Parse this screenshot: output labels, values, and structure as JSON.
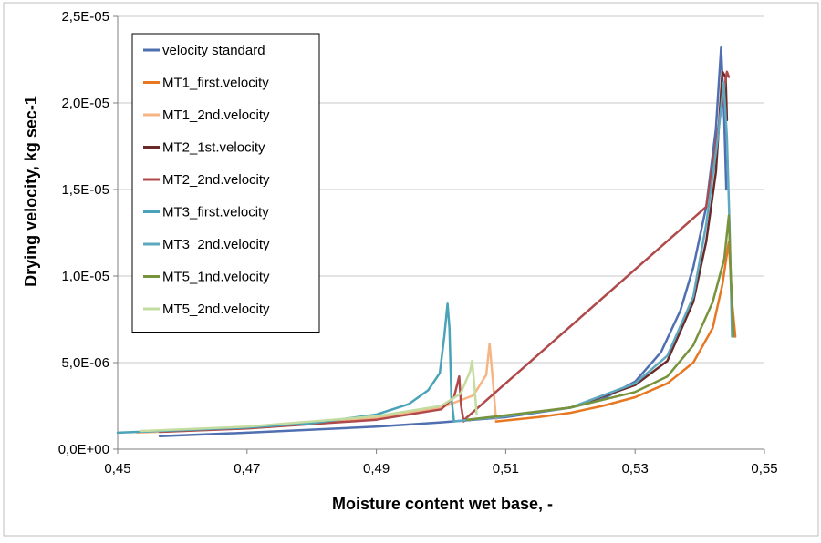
{
  "chart_data": {
    "type": "line",
    "title": "",
    "xlabel": "Moisture content wet base, -",
    "ylabel": "Drying velocity, kg sec-1",
    "xlim": [
      0.45,
      0.55
    ],
    "ylim": [
      0,
      2.5e-05
    ],
    "x_ticks": [
      0.45,
      0.47,
      0.49,
      0.51,
      0.53,
      0.55
    ],
    "x_tick_labels": [
      "0,45",
      "0,47",
      "0,49",
      "0,51",
      "0,53",
      "0,55"
    ],
    "y_ticks": [
      0,
      5e-06,
      1e-05,
      1.5e-05,
      2e-05,
      2.5e-05
    ],
    "y_tick_labels": [
      "0,0E+00",
      "5,0E-06",
      "1,0E-05",
      "1,5E-05",
      "2,0E-05",
      "2,5E-05"
    ],
    "grid": "horizontal",
    "legend_position": "top-left",
    "series": [
      {
        "name": "velocity standard",
        "color": "#4F6FB0",
        "points": [
          [
            0.4565,
            7.5e-07
          ],
          [
            0.47,
            9.5e-07
          ],
          [
            0.49,
            1.3e-06
          ],
          [
            0.5,
            1.55e-06
          ],
          [
            0.51,
            1.85e-06
          ],
          [
            0.52,
            2.4e-06
          ],
          [
            0.525,
            2.9e-06
          ],
          [
            0.53,
            3.9e-06
          ],
          [
            0.534,
            5.6e-06
          ],
          [
            0.537,
            8e-06
          ],
          [
            0.539,
            1.05e-05
          ],
          [
            0.541,
            1.4e-05
          ],
          [
            0.5425,
            1.85e-05
          ],
          [
            0.5433,
            2.32e-05
          ],
          [
            0.5438,
            1.9e-05
          ],
          [
            0.5441,
            1.5e-05
          ]
        ]
      },
      {
        "name": "MT1_first.velocity",
        "color": "#E87722",
        "points": [
          [
            0.5085,
            1.6e-06
          ],
          [
            0.515,
            1.85e-06
          ],
          [
            0.52,
            2.1e-06
          ],
          [
            0.525,
            2.5e-06
          ],
          [
            0.53,
            3e-06
          ],
          [
            0.535,
            3.8e-06
          ],
          [
            0.539,
            5e-06
          ],
          [
            0.542,
            7e-06
          ],
          [
            0.5435,
            9.5e-06
          ],
          [
            0.5445,
            1.2e-05
          ],
          [
            0.545,
            8.5e-06
          ],
          [
            0.5455,
            6.5e-06
          ]
        ]
      },
      {
        "name": "MT1_2nd.velocity",
        "color": "#F5B584",
        "points": [
          [
            0.453,
            9.5e-07
          ],
          [
            0.47,
            1.2e-06
          ],
          [
            0.49,
            1.8e-06
          ],
          [
            0.5,
            2.4e-06
          ],
          [
            0.505,
            3.1e-06
          ],
          [
            0.507,
            4.3e-06
          ],
          [
            0.5075,
            6.1e-06
          ],
          [
            0.508,
            4e-06
          ],
          [
            0.5085,
            1.7e-06
          ]
        ]
      },
      {
        "name": "MT2_1st.velocity",
        "color": "#6B2A2A",
        "points": [
          [
            0.5035,
            1.65e-06
          ],
          [
            0.51,
            1.9e-06
          ],
          [
            0.52,
            2.4e-06
          ],
          [
            0.53,
            3.7e-06
          ],
          [
            0.535,
            5.1e-06
          ],
          [
            0.539,
            8.5e-06
          ],
          [
            0.541,
            1.2e-05
          ],
          [
            0.5425,
            1.6e-05
          ],
          [
            0.5435,
            2.18e-05
          ],
          [
            0.544,
            2.15e-05
          ],
          [
            0.5442,
            1.9e-05
          ]
        ]
      },
      {
        "name": "MT2_2nd.velocity",
        "color": "#B04A4A",
        "points": [
          [
            0.4565,
            1e-06
          ],
          [
            0.47,
            1.2e-06
          ],
          [
            0.49,
            1.7e-06
          ],
          [
            0.5,
            2.3e-06
          ],
          [
            0.502,
            3e-06
          ],
          [
            0.5028,
            4.2e-06
          ],
          [
            0.5031,
            2.5e-06
          ],
          [
            0.5035,
            1.6e-06
          ],
          [
            0.5036,
            1.7e-06
          ],
          [
            0.541,
            1.4e-05
          ],
          [
            0.5442,
            2.18e-05
          ],
          [
            0.5445,
            2.15e-05
          ]
        ]
      },
      {
        "name": "MT3_first.velocity",
        "color": "#4BA3B8",
        "points": [
          [
            0.45,
            9.5e-07
          ],
          [
            0.47,
            1.25e-06
          ],
          [
            0.48,
            1.5e-06
          ],
          [
            0.49,
            2e-06
          ],
          [
            0.495,
            2.6e-06
          ],
          [
            0.498,
            3.4e-06
          ],
          [
            0.4998,
            4.4e-06
          ],
          [
            0.5005,
            6.5e-06
          ],
          [
            0.501,
            8.4e-06
          ],
          [
            0.5013,
            7e-06
          ],
          [
            0.5016,
            3e-06
          ],
          [
            0.502,
            1.6e-06
          ]
        ]
      },
      {
        "name": "MT3_2nd.velocity",
        "color": "#5EA9C0",
        "points": [
          [
            0.502,
            1.6e-06
          ],
          [
            0.51,
            1.9e-06
          ],
          [
            0.52,
            2.4e-06
          ],
          [
            0.53,
            3.8e-06
          ],
          [
            0.535,
            5.4e-06
          ],
          [
            0.539,
            8.8e-06
          ],
          [
            0.541,
            1.3e-05
          ],
          [
            0.5428,
            1.8e-05
          ],
          [
            0.5437,
            2.12e-05
          ],
          [
            0.5442,
            1.8e-05
          ],
          [
            0.5446,
            1.3e-05
          ],
          [
            0.545,
            6.5e-06
          ]
        ]
      },
      {
        "name": "MT5_1nd.velocity",
        "color": "#77933C",
        "points": [
          [
            0.504,
            1.7e-06
          ],
          [
            0.51,
            1.95e-06
          ],
          [
            0.52,
            2.4e-06
          ],
          [
            0.53,
            3.3e-06
          ],
          [
            0.535,
            4.2e-06
          ],
          [
            0.539,
            6e-06
          ],
          [
            0.542,
            8.5e-06
          ],
          [
            0.5438,
            1.1e-05
          ],
          [
            0.5445,
            1.35e-05
          ],
          [
            0.5448,
            1e-05
          ],
          [
            0.5452,
            6.5e-06
          ]
        ]
      },
      {
        "name": "MT5_2nd.velocity",
        "color": "#C4DCA0",
        "points": [
          [
            0.4535,
            1.05e-06
          ],
          [
            0.47,
            1.3e-06
          ],
          [
            0.49,
            1.9e-06
          ],
          [
            0.5,
            2.5e-06
          ],
          [
            0.503,
            3.2e-06
          ],
          [
            0.5045,
            4.5e-06
          ],
          [
            0.5048,
            5.1e-06
          ],
          [
            0.5052,
            3.5e-06
          ],
          [
            0.5055,
            2e-06
          ]
        ]
      }
    ]
  }
}
